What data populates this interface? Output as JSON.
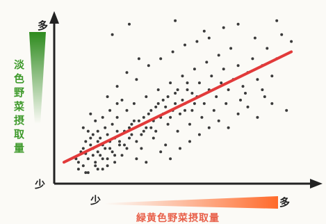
{
  "chart_data": {
    "type": "scatter",
    "xlabel": "緑黄色野菜摂取量",
    "ylabel": "淡色野菜摂取量",
    "x_tick_labels": {
      "low": "少",
      "high": "多"
    },
    "y_tick_labels": {
      "low": "少",
      "high": "多"
    },
    "xlim": [
      0,
      1
    ],
    "ylim": [
      0,
      1
    ],
    "grid": false,
    "trend_line": {
      "x": [
        0.0,
        0.94
      ],
      "y": [
        0.1,
        0.74
      ]
    },
    "points": [
      [
        0.06,
        0.1
      ],
      [
        0.09,
        0.15
      ],
      [
        0.12,
        0.18
      ],
      [
        0.1,
        0.12
      ],
      [
        0.14,
        0.22
      ],
      [
        0.16,
        0.2
      ],
      [
        0.08,
        0.08
      ],
      [
        0.18,
        0.26
      ],
      [
        0.11,
        0.2
      ],
      [
        0.15,
        0.14
      ],
      [
        0.07,
        0.16
      ],
      [
        0.13,
        0.1
      ],
      [
        0.19,
        0.18
      ],
      [
        0.12,
        0.26
      ],
      [
        0.17,
        0.3
      ],
      [
        0.09,
        0.22
      ],
      [
        0.21,
        0.24
      ],
      [
        0.14,
        0.06
      ],
      [
        0.05,
        0.12
      ],
      [
        0.2,
        0.32
      ],
      [
        0.1,
        0.28
      ],
      [
        0.16,
        0.12
      ],
      [
        0.23,
        0.2
      ],
      [
        0.18,
        0.08
      ],
      [
        0.25,
        0.28
      ],
      [
        0.22,
        0.36
      ],
      [
        0.27,
        0.24
      ],
      [
        0.19,
        0.4
      ],
      [
        0.13,
        0.34
      ],
      [
        0.24,
        0.14
      ],
      [
        0.28,
        0.32
      ],
      [
        0.3,
        0.22
      ],
      [
        0.26,
        0.4
      ],
      [
        0.21,
        0.1
      ],
      [
        0.31,
        0.34
      ],
      [
        0.33,
        0.28
      ],
      [
        0.29,
        0.44
      ],
      [
        0.35,
        0.38
      ],
      [
        0.24,
        0.46
      ],
      [
        0.32,
        0.18
      ],
      [
        0.36,
        0.3
      ],
      [
        0.38,
        0.42
      ],
      [
        0.34,
        0.48
      ],
      [
        0.4,
        0.36
      ],
      [
        0.37,
        0.24
      ],
      [
        0.41,
        0.46
      ],
      [
        0.43,
        0.32
      ],
      [
        0.39,
        0.52
      ],
      [
        0.45,
        0.4
      ],
      [
        0.42,
        0.2
      ],
      [
        0.46,
        0.5
      ],
      [
        0.48,
        0.38
      ],
      [
        0.44,
        0.56
      ],
      [
        0.5,
        0.44
      ],
      [
        0.47,
        0.28
      ],
      [
        0.51,
        0.52
      ],
      [
        0.53,
        0.4
      ],
      [
        0.49,
        0.6
      ],
      [
        0.55,
        0.48
      ],
      [
        0.52,
        0.32
      ],
      [
        0.56,
        0.56
      ],
      [
        0.58,
        0.44
      ],
      [
        0.54,
        0.64
      ],
      [
        0.6,
        0.52
      ],
      [
        0.57,
        0.36
      ],
      [
        0.61,
        0.6
      ],
      [
        0.63,
        0.48
      ],
      [
        0.59,
        0.68
      ],
      [
        0.65,
        0.56
      ],
      [
        0.62,
        0.4
      ],
      [
        0.66,
        0.64
      ],
      [
        0.68,
        0.52
      ],
      [
        0.64,
        0.72
      ],
      [
        0.7,
        0.58
      ],
      [
        0.67,
        0.44
      ],
      [
        0.72,
        0.66
      ],
      [
        0.74,
        0.54
      ],
      [
        0.69,
        0.76
      ],
      [
        0.76,
        0.62
      ],
      [
        0.73,
        0.46
      ],
      [
        0.78,
        0.7
      ],
      [
        0.8,
        0.58
      ],
      [
        0.75,
        0.5
      ],
      [
        0.82,
        0.66
      ],
      [
        0.84,
        0.76
      ],
      [
        0.86,
        0.6
      ],
      [
        0.79,
        0.82
      ],
      [
        0.88,
        0.7
      ],
      [
        0.9,
        0.84
      ],
      [
        0.83,
        0.48
      ],
      [
        0.3,
        0.58
      ],
      [
        0.26,
        0.62
      ],
      [
        0.35,
        0.66
      ],
      [
        0.4,
        0.7
      ],
      [
        0.22,
        0.54
      ],
      [
        0.45,
        0.74
      ],
      [
        0.5,
        0.78
      ],
      [
        0.55,
        0.8
      ],
      [
        0.6,
        0.82
      ],
      [
        0.31,
        0.7
      ],
      [
        0.2,
        0.84
      ],
      [
        0.27,
        0.9
      ],
      [
        0.58,
        0.86
      ],
      [
        0.66,
        0.88
      ],
      [
        0.72,
        0.9
      ],
      [
        0.46,
        0.92
      ],
      [
        0.88,
        0.92
      ],
      [
        0.94,
        0.8
      ],
      [
        0.82,
        0.52
      ],
      [
        0.92,
        0.4
      ],
      [
        0.16,
        0.36
      ],
      [
        0.08,
        0.3
      ],
      [
        0.11,
        0.38
      ],
      [
        0.22,
        0.44
      ],
      [
        0.18,
        0.48
      ],
      [
        0.26,
        0.18
      ],
      [
        0.3,
        0.12
      ],
      [
        0.34,
        0.1
      ],
      [
        0.4,
        0.16
      ],
      [
        0.44,
        0.12
      ],
      [
        0.48,
        0.18
      ],
      [
        0.52,
        0.22
      ],
      [
        0.56,
        0.26
      ],
      [
        0.6,
        0.3
      ],
      [
        0.64,
        0.34
      ],
      [
        0.68,
        0.3
      ],
      [
        0.72,
        0.38
      ],
      [
        0.76,
        0.42
      ],
      [
        0.8,
        0.36
      ],
      [
        0.86,
        0.44
      ],
      [
        0.12,
        0.14
      ],
      [
        0.14,
        0.16
      ],
      [
        0.15,
        0.24
      ],
      [
        0.17,
        0.18
      ],
      [
        0.19,
        0.22
      ],
      [
        0.2,
        0.16
      ],
      [
        0.22,
        0.28
      ],
      [
        0.23,
        0.22
      ],
      [
        0.25,
        0.2
      ],
      [
        0.27,
        0.3
      ],
      [
        0.28,
        0.26
      ],
      [
        0.29,
        0.34
      ],
      [
        0.32,
        0.26
      ],
      [
        0.33,
        0.36
      ],
      [
        0.34,
        0.3
      ],
      [
        0.36,
        0.4
      ],
      [
        0.37,
        0.34
      ],
      [
        0.38,
        0.28
      ],
      [
        0.39,
        0.44
      ],
      [
        0.41,
        0.38
      ],
      [
        0.42,
        0.42
      ],
      [
        0.43,
        0.48
      ],
      [
        0.44,
        0.36
      ],
      [
        0.46,
        0.44
      ],
      [
        0.47,
        0.52
      ],
      [
        0.49,
        0.46
      ],
      [
        0.5,
        0.4
      ],
      [
        0.51,
        0.56
      ],
      [
        0.53,
        0.5
      ],
      [
        0.54,
        0.44
      ],
      [
        0.06,
        0.06
      ],
      [
        0.1,
        0.04
      ],
      [
        0.13,
        0.08
      ],
      [
        0.16,
        0.06
      ],
      [
        0.18,
        0.12
      ],
      [
        0.08,
        0.18
      ],
      [
        0.11,
        0.24
      ],
      [
        0.09,
        0.04
      ],
      [
        0.14,
        0.28
      ],
      [
        0.21,
        0.14
      ]
    ]
  }
}
